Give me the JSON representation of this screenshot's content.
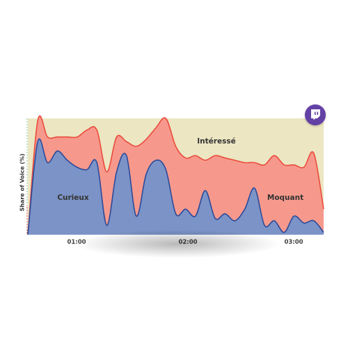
{
  "chart_data": {
    "type": "area",
    "stacked": true,
    "title": "",
    "xlabel": "",
    "ylabel": "Share of Voice (%)",
    "x_ticks": [
      "01:00",
      "02:00",
      "03:00"
    ],
    "ylim": [
      0,
      100
    ],
    "series": [
      {
        "name": "Curieux",
        "color": "#7b93c6",
        "line_color": "#2b4a9a",
        "values": [
          0,
          80,
          62,
          72,
          64,
          58,
          56,
          62,
          8,
          54,
          68,
          16,
          52,
          64,
          56,
          18,
          22,
          16,
          38,
          14,
          18,
          12,
          22,
          40,
          8,
          12,
          2,
          16,
          10,
          12,
          2
        ]
      },
      {
        "name": "Moquant",
        "color": "#f6998c",
        "line_color": "#e94b3c",
        "values": [
          0,
          18,
          22,
          12,
          20,
          26,
          34,
          28,
          46,
          30,
          12,
          60,
          30,
          28,
          44,
          58,
          44,
          52,
          26,
          54,
          48,
          52,
          40,
          22,
          52,
          56,
          58,
          44,
          48,
          58,
          20
        ]
      },
      {
        "name": "Intéressé",
        "color": "#ece6c2",
        "line_color": "#ece6c2",
        "values": [
          100,
          2,
          16,
          16,
          16,
          16,
          10,
          10,
          46,
          16,
          20,
          24,
          18,
          8,
          0,
          24,
          34,
          32,
          36,
          32,
          34,
          36,
          38,
          38,
          40,
          32,
          40,
          40,
          42,
          30,
          78
        ]
      }
    ],
    "annotations": [
      "Curieux",
      "Moquant",
      "Intéressé"
    ],
    "logo_icon": "twitch-icon"
  }
}
